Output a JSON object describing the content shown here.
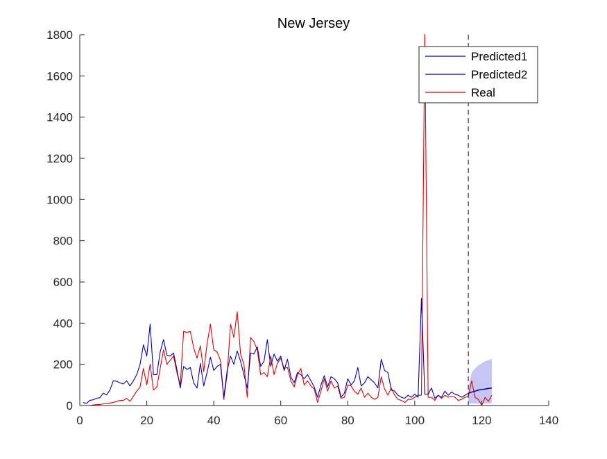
{
  "chart_data": {
    "type": "line",
    "title": "New Jersey",
    "xlabel": "",
    "ylabel": "",
    "xlim": [
      0,
      140
    ],
    "ylim": [
      0,
      1800
    ],
    "xticks": [
      0,
      20,
      40,
      60,
      80,
      100,
      120,
      140
    ],
    "yticks": [
      0,
      200,
      400,
      600,
      800,
      1000,
      1200,
      1400,
      1600,
      1800
    ],
    "legend_position": "top-right",
    "forecast_start_x": 116,
    "series": [
      {
        "name": "Predicted1",
        "color": "#0000b3",
        "x": [
          1,
          2,
          3,
          4,
          5,
          6,
          7,
          8,
          9,
          10,
          11,
          12,
          13,
          14,
          15,
          16,
          17,
          18,
          19,
          20,
          21,
          22,
          23,
          24,
          25,
          26,
          27,
          28,
          29,
          30,
          31,
          32,
          33,
          34,
          35,
          36,
          37,
          38,
          39,
          40,
          41,
          42,
          43,
          44,
          45,
          46,
          47,
          48,
          49,
          50,
          51,
          52,
          53,
          54,
          55,
          56,
          57,
          58,
          59,
          60,
          61,
          62,
          63,
          64,
          65,
          66,
          67,
          68,
          69,
          70,
          71,
          72,
          73,
          74,
          75,
          76,
          77,
          78,
          79,
          80,
          81,
          82,
          83,
          84,
          85,
          86,
          87,
          88,
          89,
          90,
          91,
          92,
          93,
          94,
          95,
          96,
          97,
          98,
          99,
          100,
          101,
          102,
          103,
          104,
          105,
          106,
          107,
          108,
          109,
          110,
          111,
          112,
          113,
          114,
          115,
          116
        ],
        "values": [
          15,
          10,
          25,
          28,
          35,
          38,
          60,
          52,
          75,
          120,
          118,
          110,
          105,
          120,
          95,
          120,
          150,
          200,
          295,
          240,
          395,
          150,
          150,
          260,
          320,
          245,
          240,
          255,
          175,
          85,
          190,
          175,
          185,
          110,
          85,
          205,
          95,
          160,
          235,
          170,
          190,
          200,
          40,
          170,
          240,
          200,
          265,
          215,
          150,
          85,
          255,
          250,
          285,
          190,
          215,
          320,
          190,
          250,
          215,
          240,
          170,
          225,
          140,
          110,
          160,
          150,
          130,
          150,
          120,
          90,
          40,
          100,
          145,
          90,
          140,
          130,
          110,
          40,
          60,
          130,
          100,
          120,
          185,
          95,
          110,
          140,
          125,
          110,
          85,
          225,
          170,
          160,
          75,
          70,
          50,
          40,
          35,
          50,
          40,
          55,
          40,
          520,
          55,
          55,
          85,
          35,
          50,
          40,
          70,
          50,
          65,
          55,
          50,
          40,
          50,
          60
        ]
      },
      {
        "name": "Predicted2",
        "color": "#0000b3",
        "x": [
          116,
          117,
          118,
          119,
          120,
          121,
          122,
          123
        ],
        "values": [
          60,
          65,
          70,
          75,
          78,
          80,
          83,
          85
        ],
        "band_lower": [
          10,
          10,
          10,
          10,
          10,
          10,
          10,
          10
        ],
        "band_upper": [
          90,
          160,
          180,
          195,
          205,
          215,
          220,
          228
        ],
        "band_color": "#b3b3f2"
      },
      {
        "name": "Real",
        "color": "#e00000",
        "x": [
          1,
          2,
          3,
          4,
          5,
          6,
          7,
          8,
          9,
          10,
          11,
          12,
          13,
          14,
          15,
          16,
          17,
          18,
          19,
          20,
          21,
          22,
          23,
          24,
          25,
          26,
          27,
          28,
          29,
          30,
          31,
          32,
          33,
          34,
          35,
          36,
          37,
          38,
          39,
          40,
          41,
          42,
          43,
          44,
          45,
          46,
          47,
          48,
          49,
          50,
          51,
          52,
          53,
          54,
          55,
          56,
          57,
          58,
          59,
          60,
          61,
          62,
          63,
          64,
          65,
          66,
          67,
          68,
          69,
          70,
          71,
          72,
          73,
          74,
          75,
          76,
          77,
          78,
          79,
          80,
          81,
          82,
          83,
          84,
          85,
          86,
          87,
          88,
          89,
          90,
          91,
          92,
          93,
          94,
          95,
          96,
          97,
          98,
          99,
          100,
          101,
          102,
          103,
          104,
          105,
          106,
          107,
          108,
          109,
          110,
          111,
          112,
          113,
          114,
          115,
          116,
          117,
          118,
          119,
          120,
          121,
          122,
          123
        ],
        "values": [
          0,
          0,
          0,
          3,
          5,
          5,
          8,
          10,
          12,
          15,
          20,
          25,
          25,
          35,
          20,
          45,
          70,
          90,
          180,
          100,
          200,
          75,
          90,
          180,
          270,
          200,
          220,
          240,
          160,
          100,
          360,
          355,
          360,
          280,
          230,
          290,
          165,
          300,
          395,
          270,
          260,
          220,
          30,
          150,
          395,
          330,
          455,
          250,
          200,
          40,
          330,
          310,
          270,
          150,
          160,
          140,
          240,
          150,
          205,
          230,
          180,
          185,
          120,
          90,
          150,
          180,
          100,
          120,
          95,
          80,
          15,
          70,
          130,
          70,
          120,
          85,
          95,
          35,
          40,
          100,
          95,
          70,
          55,
          85,
          40,
          60,
          40,
          30,
          40,
          140,
          80,
          50,
          85,
          50,
          30,
          25,
          15,
          30,
          30,
          40,
          50,
          50,
          1810,
          40,
          40,
          25,
          50,
          35,
          50,
          40,
          45,
          40,
          25,
          30,
          40,
          45,
          120,
          40,
          30,
          0,
          40,
          20,
          50
        ]
      }
    ]
  }
}
